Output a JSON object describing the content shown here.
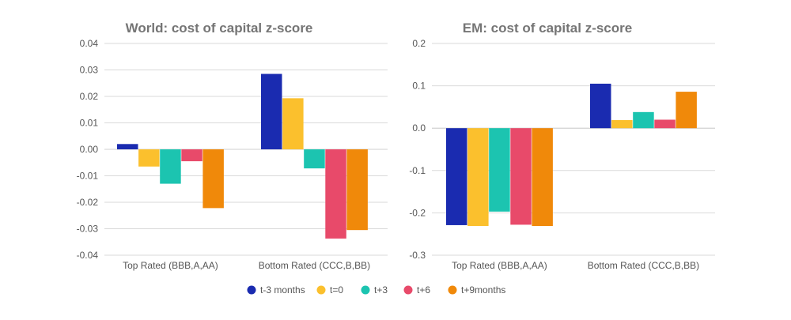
{
  "chart_data": [
    {
      "type": "bar",
      "title": "World: cost of capital z-score",
      "categories": [
        "Top Rated (BBB,A,AA)",
        "Bottom Rated (CCC,B,BB)"
      ],
      "yticks": [
        "0.04",
        "0.03",
        "0.02",
        "0.01",
        "0.00",
        "-0.01",
        "-0.02",
        "-0.03",
        "-0.04"
      ],
      "ylim": [
        -0.04,
        0.04
      ],
      "grid": true,
      "series": [
        {
          "name": "t-3 months",
          "values": [
            0.002,
            0.0285
          ]
        },
        {
          "name": "t=0",
          "values": [
            -0.0065,
            0.0193
          ]
        },
        {
          "name": "t+3",
          "values": [
            -0.013,
            -0.0072
          ]
        },
        {
          "name": "t+6",
          "values": [
            -0.0045,
            -0.0337
          ]
        },
        {
          "name": "t+9months",
          "values": [
            -0.0222,
            -0.0305
          ]
        }
      ]
    },
    {
      "type": "bar",
      "title": "EM: cost of capital z-score",
      "categories": [
        "Top Rated (BBB,A,AA)",
        "Bottom Rated (CCC,B,BB)"
      ],
      "yticks": [
        "0.2",
        "0.1",
        "0.0",
        "-0.1",
        "-0.2",
        "-0.3"
      ],
      "ylim": [
        -0.3,
        0.2
      ],
      "grid": true,
      "series": [
        {
          "name": "t-3 months",
          "values": [
            -0.229,
            0.105
          ]
        },
        {
          "name": "t=0",
          "values": [
            -0.231,
            0.019
          ]
        },
        {
          "name": "t+3",
          "values": [
            -0.197,
            0.038
          ]
        },
        {
          "name": "t+6",
          "values": [
            -0.228,
            0.02
          ]
        },
        {
          "name": "t+9months",
          "values": [
            -0.231,
            0.086
          ]
        }
      ]
    }
  ],
  "legend": {
    "items": [
      {
        "label": "t-3 months",
        "color": "#1a2bb0"
      },
      {
        "label": "t=0",
        "color": "#fbc02d"
      },
      {
        "label": "t+3",
        "color": "#1cc4b0"
      },
      {
        "label": "t+6",
        "color": "#e84a6a"
      },
      {
        "label": "t+9months",
        "color": "#f0890a"
      }
    ]
  }
}
